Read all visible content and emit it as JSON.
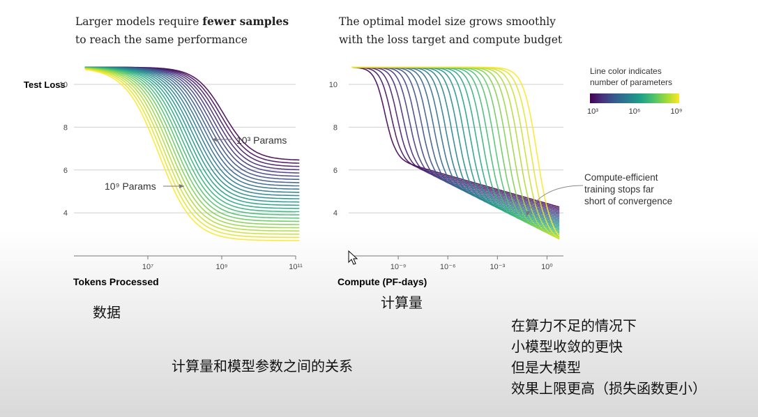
{
  "titles": {
    "left": {
      "line1_pre": "Larger models require ",
      "line1_bold": "fewer samples",
      "line2": "to reach the same performance"
    },
    "right": {
      "line1": "The optimal model size grows smoothly",
      "line2": "with the loss target and compute budget"
    }
  },
  "colors": {
    "grid": "#cfcfcf",
    "axis": "#777777",
    "annotation": "#777777",
    "viridis": [
      "#440154",
      "#46327e",
      "#365c8d",
      "#277f8e",
      "#1fa187",
      "#4ac16d",
      "#a0da39",
      "#fde725"
    ]
  },
  "colorbar": {
    "title_line1": "Line color indicates",
    "title_line2": "number of parameters",
    "ticks": [
      "10³",
      "10⁶",
      "10⁹"
    ]
  },
  "chart_data": [
    {
      "type": "line",
      "ylabel": "Test Loss",
      "xlabel": "Tokens Processed",
      "x_scale": "log",
      "xlim": [
        100000.0,
        100000000000.0
      ],
      "ylim": [
        2.4,
        11
      ],
      "yticks": [
        "10",
        "8",
        "6",
        "4"
      ],
      "xticks": [
        "10⁷",
        "10⁹",
        "10¹¹"
      ],
      "grid": "horizontal",
      "series_count": 26,
      "note": "illustrative_curves",
      "annotations": [
        {
          "text": "10³ Params",
          "target_x": 1100000000.0,
          "target_y": 6.9
        },
        {
          "text": "10⁹ Params",
          "target_x": 150000000.0,
          "target_y": 5.2
        }
      ]
    },
    {
      "type": "line",
      "xlabel": "Compute (PF-days)",
      "x_scale": "log",
      "xlim": [
        1e-12,
        10.0
      ],
      "ylim": [
        2.4,
        11
      ],
      "yticks": [
        "10",
        "8",
        "6",
        "4"
      ],
      "xticks": [
        "10⁻⁹",
        "10⁻⁶",
        "10⁻³",
        "10⁰"
      ],
      "grid": "horizontal",
      "series_count": 26,
      "note": "illustrative_curves",
      "annotations": [
        {
          "text_lines": [
            "Compute-efficient",
            "training stops far",
            "short of convergence"
          ],
          "target_x": 0.01,
          "target_y": 3.4
        }
      ]
    }
  ],
  "notes": {
    "data": "数据",
    "compute": "计算量",
    "relation": "计算量和模型参数之间的关系",
    "insight": [
      "在算力不足的情况下",
      "小模型收敛的更快",
      "但是大模型",
      "效果上限更高（损失函数更小）"
    ]
  }
}
